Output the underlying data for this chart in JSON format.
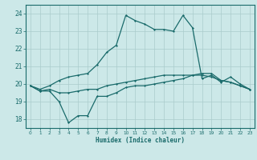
{
  "xlabel": "Humidex (Indice chaleur)",
  "ylabel": "",
  "bg_color": "#cce8e8",
  "grid_color": "#aacccc",
  "line_color": "#1a6b6b",
  "xlim": [
    -0.5,
    23.5
  ],
  "ylim": [
    17.5,
    24.5
  ],
  "xticks": [
    0,
    1,
    2,
    3,
    4,
    5,
    6,
    7,
    8,
    9,
    10,
    11,
    12,
    13,
    14,
    15,
    16,
    17,
    18,
    19,
    20,
    21,
    22,
    23
  ],
  "yticks": [
    18,
    19,
    20,
    21,
    22,
    23,
    24
  ],
  "series": [
    [
      19.9,
      19.6,
      19.6,
      19.0,
      17.8,
      18.2,
      18.2,
      19.3,
      19.3,
      19.5,
      19.8,
      19.9,
      19.9,
      20.0,
      20.1,
      20.2,
      20.3,
      20.5,
      20.6,
      20.6,
      20.2,
      20.1,
      19.9,
      19.7
    ],
    [
      19.9,
      19.6,
      19.7,
      19.5,
      19.5,
      19.6,
      19.7,
      19.7,
      19.9,
      20.0,
      20.1,
      20.2,
      20.3,
      20.4,
      20.5,
      20.5,
      20.5,
      20.5,
      20.5,
      20.4,
      20.2,
      20.1,
      19.9,
      19.7
    ],
    [
      19.9,
      19.7,
      19.9,
      20.2,
      20.4,
      20.5,
      20.6,
      21.1,
      21.8,
      22.2,
      23.9,
      23.6,
      23.4,
      23.1,
      23.1,
      23.0,
      23.9,
      23.2,
      20.3,
      20.5,
      20.1,
      20.4,
      20.0,
      19.7
    ]
  ]
}
